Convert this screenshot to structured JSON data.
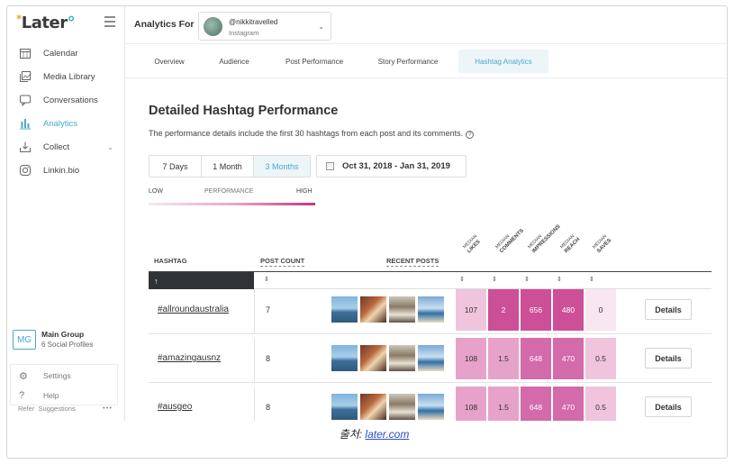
{
  "sidebar": {
    "logo": {
      "text": "Later",
      "star": "*"
    },
    "items": [
      {
        "label": "Calendar",
        "icon": "calendar-icon"
      },
      {
        "label": "Media Library",
        "icon": "media-library-icon"
      },
      {
        "label": "Conversations",
        "icon": "chat-icon"
      },
      {
        "label": "Analytics",
        "icon": "bar-chart-icon",
        "active": true
      },
      {
        "label": "Collect",
        "icon": "inbox-icon"
      },
      {
        "label": "Linkin.bio",
        "icon": "instagram-icon"
      }
    ],
    "group": {
      "initials": "MG",
      "name": "Main Group",
      "profiles": "6 Social Profiles"
    },
    "bottom": [
      {
        "label": "Settings",
        "icon": "gear-icon"
      },
      {
        "label": "Help",
        "icon": "help-icon"
      }
    ],
    "refer": "Refer",
    "suggestions": "Suggestions",
    "more": "•••"
  },
  "topbar": {
    "analytics_for": "Analytics For",
    "account": {
      "handle": "@nikkitravelled",
      "network": "Instagram"
    }
  },
  "tabs": [
    {
      "label": "Overview"
    },
    {
      "label": "Audience"
    },
    {
      "label": "Post Performance"
    },
    {
      "label": "Story Performance"
    },
    {
      "label": "Hashtag Analytics",
      "active": true
    }
  ],
  "main": {
    "title": "Detailed Hashtag Performance",
    "description": "The performance details include the first 30 hashtags from each post and its comments.",
    "range_options": [
      "7 Days",
      "1 Month",
      "3 Months"
    ],
    "range_selected": "3 Months",
    "date_range": "Oct 31, 2018 - Jan 31, 2019",
    "performance_legend": {
      "low": "LOW",
      "mid": "PERFORMANCE",
      "high": "HIGH"
    }
  },
  "table": {
    "headers": {
      "hashtag": "HASHTAG",
      "post_count": "POST COUNT",
      "recent_posts": "RECENT POSTS"
    },
    "metrics": [
      {
        "small": "MEDIAN",
        "label": "LIKES"
      },
      {
        "small": "MEDIAN",
        "label": "COMMENTS"
      },
      {
        "small": "MEDIAN",
        "label": "IMPRESSIONS"
      },
      {
        "small": "MEDIAN",
        "label": "REACH"
      },
      {
        "small": "MEDIAN",
        "label": "SAVES"
      }
    ],
    "sort_up": "↑",
    "sort_glyph": "⇕",
    "details_label": "Details",
    "rows": [
      {
        "hashtag": "#allroundaustralia",
        "post_count": "7",
        "likes": "107",
        "comments": "2",
        "impressions": "656",
        "reach": "480",
        "saves": "0",
        "heat": [
          "#f0c4dc",
          "#cc4f97",
          "#cc4f97",
          "#cc4f97",
          "#f8e6f0"
        ]
      },
      {
        "hashtag": "#amazingausnz",
        "post_count": "8",
        "likes": "108",
        "comments": "1.5",
        "impressions": "648",
        "reach": "470",
        "saves": "0.5",
        "heat": [
          "#e7a2c9",
          "#e7a2c9",
          "#d36aa9",
          "#d36aa9",
          "#f0c4dc"
        ]
      },
      {
        "hashtag": "#ausgeo",
        "post_count": "8",
        "likes": "108",
        "comments": "1.5",
        "impressions": "648",
        "reach": "470",
        "saves": "0.5",
        "heat": [
          "#e7a2c9",
          "#e7a2c9",
          "#d36aa9",
          "#d36aa9",
          "#f0c4dc"
        ]
      }
    ]
  },
  "caption": {
    "prefix": "출처: ",
    "link": "later.com"
  }
}
